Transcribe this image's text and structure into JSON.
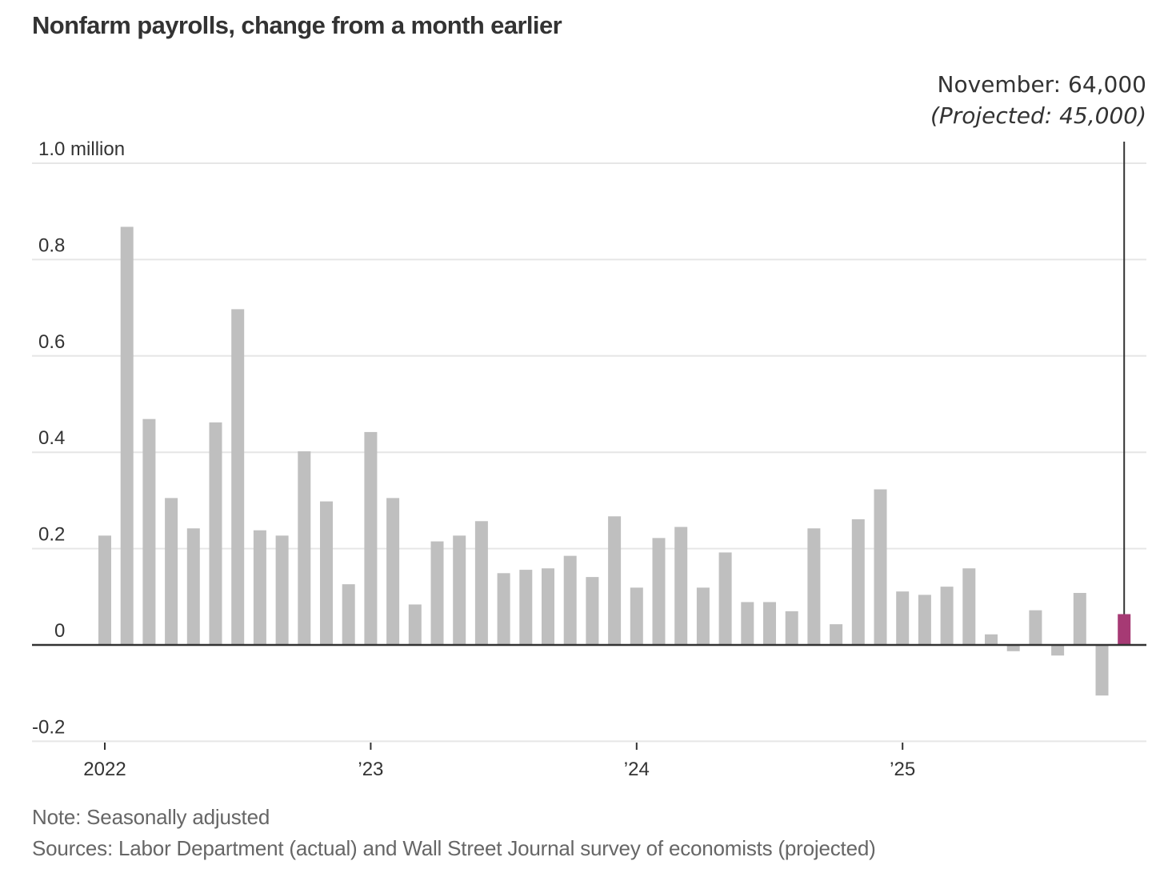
{
  "chart_data": {
    "type": "bar",
    "title": "Nonfarm payrolls, change from a month earlier",
    "xlabel": "",
    "ylabel": "",
    "y_unit_label": "million",
    "ylim": [
      -0.2,
      1.0
    ],
    "yticks": [
      -0.2,
      0,
      0.2,
      0.4,
      0.6,
      0.8,
      1.0
    ],
    "ytick_labels": [
      "-0.2",
      "0",
      "0.2",
      "0.4",
      "0.6",
      "0.8",
      "1.0 million"
    ],
    "grid": true,
    "xtick_labels": [
      {
        "label": "2022",
        "index": 0
      },
      {
        "label": "’23",
        "index": 12
      },
      {
        "label": "’24",
        "index": 24
      },
      {
        "label": "’25",
        "index": 36
      }
    ],
    "categories": [
      "Jan 2022",
      "Feb 2022",
      "Mar 2022",
      "Apr 2022",
      "May 2022",
      "Jun 2022",
      "Jul 2022",
      "Aug 2022",
      "Sep 2022",
      "Oct 2022",
      "Nov 2022",
      "Dec 2022",
      "Jan 2023",
      "Feb 2023",
      "Mar 2023",
      "Apr 2023",
      "May 2023",
      "Jun 2023",
      "Jul 2023",
      "Aug 2023",
      "Sep 2023",
      "Oct 2023",
      "Nov 2023",
      "Dec 2023",
      "Jan 2024",
      "Feb 2024",
      "Mar 2024",
      "Apr 2024",
      "May 2024",
      "Jun 2024",
      "Jul 2024",
      "Aug 2024",
      "Sep 2024",
      "Oct 2024",
      "Nov 2024",
      "Dec 2024",
      "Jan 2025",
      "Feb 2025",
      "Mar 2025",
      "Apr 2025",
      "May 2025",
      "Jun 2025",
      "Jul 2025",
      "Aug 2025",
      "Sep 2025",
      "Oct 2025",
      "Nov 2025"
    ],
    "series": [
      {
        "name": "Monthly change (million)",
        "values": [
          0.227,
          0.868,
          0.469,
          0.305,
          0.242,
          0.462,
          0.697,
          0.238,
          0.227,
          0.402,
          0.298,
          0.126,
          0.442,
          0.305,
          0.084,
          0.215,
          0.227,
          0.257,
          0.149,
          0.156,
          0.159,
          0.185,
          0.141,
          0.267,
          0.119,
          0.222,
          0.245,
          0.119,
          0.192,
          0.089,
          0.089,
          0.07,
          0.242,
          0.043,
          0.261,
          0.323,
          0.111,
          0.104,
          0.121,
          0.159,
          0.022,
          -0.013,
          0.072,
          -0.022,
          0.108,
          -0.105,
          0.064
        ]
      }
    ],
    "highlight_index": 46,
    "colors": {
      "bar": "#bfbfbf",
      "highlight": "#a63a74",
      "grid": "#e6e6e6",
      "zero_line": "#333333",
      "text": "#333333"
    },
    "annotation": {
      "line1": "November: 64,000",
      "line2": "(Projected: 45,000)",
      "target_index": 46
    }
  },
  "footer": {
    "note": "Note: Seasonally adjusted",
    "sources": "Sources: Labor Department (actual) and Wall Street Journal survey of economists (projected)"
  }
}
